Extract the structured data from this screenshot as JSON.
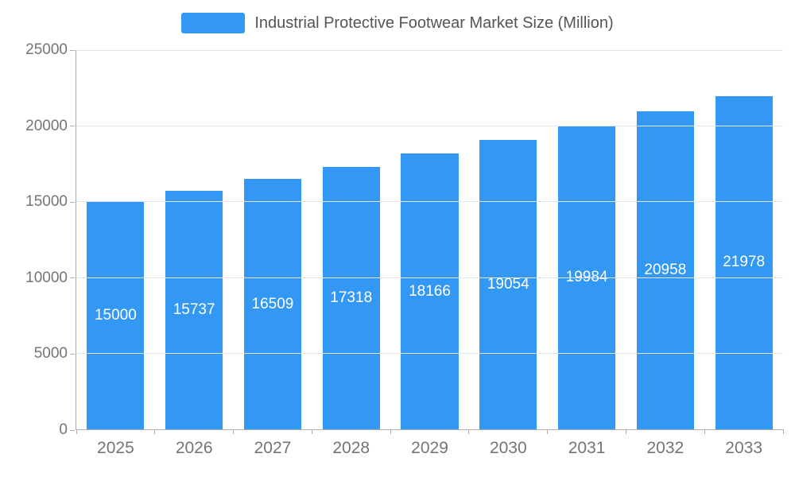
{
  "legend": {
    "label": "Industrial Protective Footwear Market Size (Million)"
  },
  "chart_data": {
    "type": "bar",
    "title": "Industrial Protective Footwear Market Size (Million)",
    "categories": [
      "2025",
      "2026",
      "2027",
      "2028",
      "2029",
      "2030",
      "2031",
      "2032",
      "2033"
    ],
    "values": [
      15000,
      15737,
      16509,
      17318,
      18166,
      19054,
      19984,
      20958,
      21978
    ],
    "xlabel": "",
    "ylabel": "",
    "ylim": [
      0,
      25000
    ],
    "yticks": [
      0,
      5000,
      10000,
      15000,
      20000,
      25000
    ],
    "grid": true,
    "legend_position": "top",
    "bar_color": "#3398f3",
    "value_label_color": "#ffffff",
    "axis_label_color": "#757575"
  }
}
